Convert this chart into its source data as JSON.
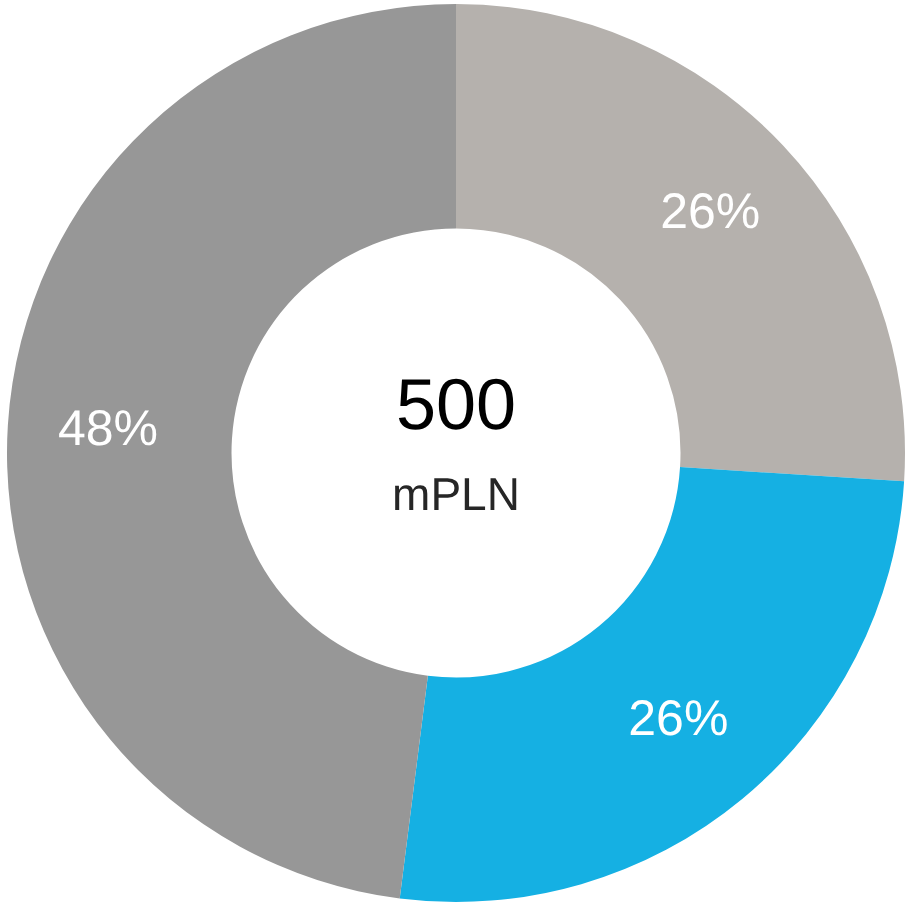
{
  "chart_data": {
    "type": "donut",
    "categories": [
      null,
      null,
      null
    ],
    "values": [
      26,
      26,
      48
    ],
    "colors": [
      "#b5b1ad",
      "#15b0e3",
      "#979797"
    ],
    "value_labels": [
      "26%",
      "26%",
      "48%"
    ],
    "annotations": [
      "500",
      "mPLN"
    ]
  }
}
